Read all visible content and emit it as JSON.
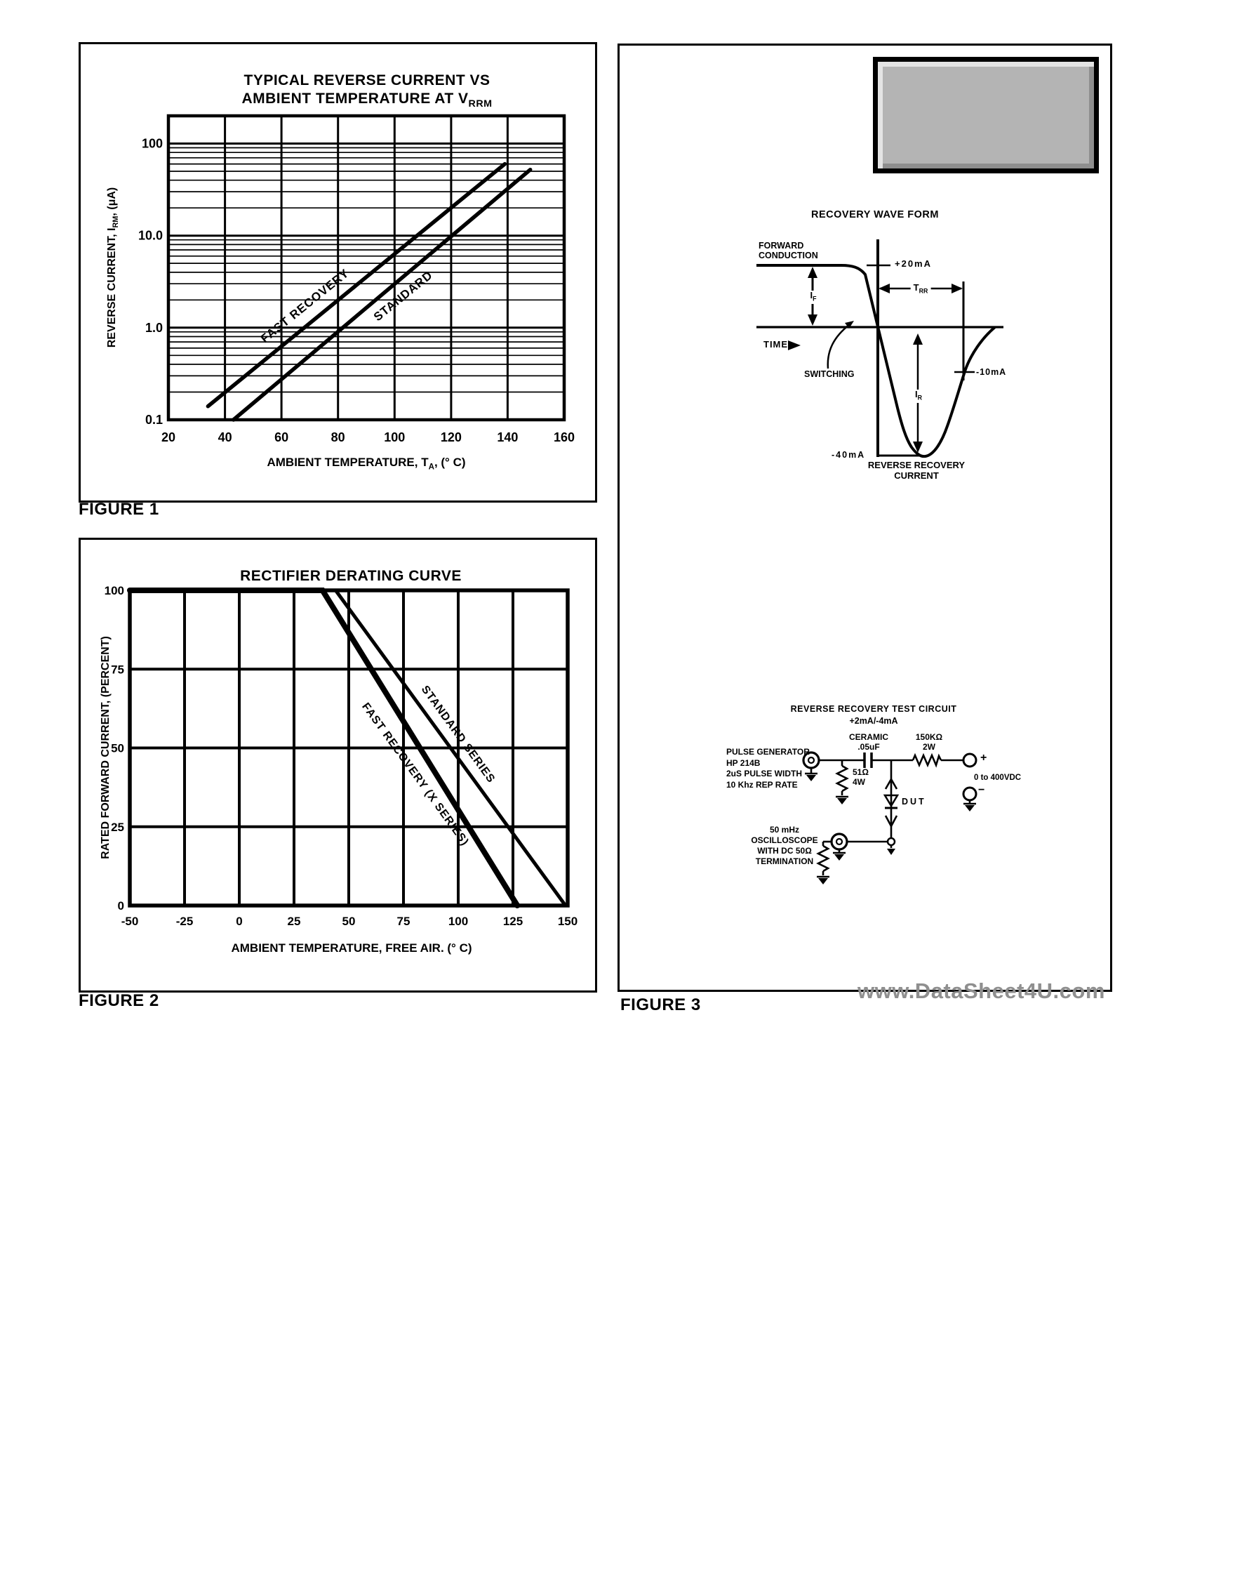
{
  "watermarks": {
    "top": "www.DataSheet4U.com",
    "bottom": "www.DataSheet4U.com"
  },
  "colors": {
    "ink": "#000000",
    "watermark_light": "#c9c9c9",
    "watermark_dark": "#8f8f8f",
    "placeholder_fill": "#b4b4b4"
  },
  "figure1": {
    "caption": "FIGURE 1",
    "title_line1": "TYPICAL REVERSE CURRENT VS",
    "title_line2_parts": [
      "AMBIENT TEMPERATURE AT V",
      [
        "RRM"
      ]
    ],
    "xlabel_parts": [
      "AMBIENT TEMPERATURE, T",
      [
        "A"
      ],
      ", (° C)"
    ],
    "ylabel_parts": [
      "REVERSE CURRENT, I",
      [
        "RM"
      ],
      ", (μA)"
    ],
    "chart_data": {
      "type": "line",
      "title": "TYPICAL REVERSE CURRENT VS AMBIENT TEMPERATURE AT VRRM",
      "xlabel": "AMBIENT TEMPERATURE, TA, (° C)",
      "ylabel": "REVERSE CURRENT, IRM, (μA)",
      "xlim": [
        20,
        160
      ],
      "ylim": [
        0.1,
        200
      ],
      "yscale": "log",
      "grid": "on",
      "x_ticks": [
        20,
        40,
        60,
        80,
        100,
        120,
        140,
        160
      ],
      "y_ticks": [
        {
          "v": 100,
          "label": "100"
        },
        {
          "v": 10,
          "label": "10.0"
        },
        {
          "v": 1,
          "label": "1.0"
        },
        {
          "v": 0.1,
          "label": "0.1"
        }
      ],
      "series": [
        {
          "name": "FAST RECOVERY",
          "width": 5.5,
          "points": [
            [
              34,
              0.14
            ],
            [
              139,
              60
            ]
          ]
        },
        {
          "name": "STANDARD",
          "width": 5.5,
          "points": [
            [
              43,
              0.1
            ],
            [
              148,
              52
            ]
          ]
        }
      ]
    }
  },
  "figure2": {
    "caption": "FIGURE 2",
    "xlabel": "AMBIENT TEMPERATURE, FREE AIR. (° C)",
    "ylabel": "RATED FORWARD CURRENT, (PERCENT)",
    "chart_data": {
      "type": "line",
      "title": "RECTIFIER DERATING CURVE",
      "xlabel": "AMBIENT TEMPERATURE, FREE AIR. (° C)",
      "ylabel": "RATED FORWARD CURRENT, (PERCENT)",
      "xlim": [
        -50,
        150
      ],
      "ylim": [
        0,
        100
      ],
      "grid": "on",
      "x_ticks": [
        -50,
        -25,
        0,
        25,
        50,
        75,
        100,
        125,
        150
      ],
      "y_ticks": [
        0,
        25,
        50,
        75,
        100
      ],
      "series": [
        {
          "name": "FAST RECOVERY (X SERIES)",
          "width": 8,
          "points": [
            [
              -50,
              100
            ],
            [
              38,
              100
            ],
            [
              127,
              0
            ]
          ]
        },
        {
          "name": "STANDARD SERIES",
          "width": 5,
          "points": [
            [
              -50,
              100
            ],
            [
              44,
              100
            ],
            [
              149,
              0
            ]
          ]
        }
      ]
    }
  },
  "figure3": {
    "caption": "FIGURE 3",
    "waveform": {
      "title": "RECOVERY WAVE FORM",
      "forward_conduction": "FORWARD\nCONDUCTION",
      "plus20": "+20mA",
      "trr_parts": [
        "T",
        [
          "RR"
        ]
      ],
      "if_parts": [
        "I",
        [
          "F"
        ]
      ],
      "time": "TIME",
      "switching": "SWITCHING",
      "minus10": "-10mA",
      "ir_parts": [
        "I",
        [
          "R"
        ]
      ],
      "minus40": "-40mA",
      "reverse_recovery": "REVERSE RECOVERY\nCURRENT"
    },
    "circuit": {
      "title": "REVERSE RECOVERY TEST CIRCUIT",
      "subtitle": "+2mA/-4mA",
      "pulse_generator": "PULSE GENERATOR\nHP 214B\n2uS PULSE WIDTH\n10 Khz REP RATE",
      "ceramic": "CERAMIC\n.05uF",
      "r150": "150KΩ\n2W",
      "r51": "51Ω\n4W",
      "dut": "DUT",
      "scope": "50 mHz\nOSCILLOSCOPE\nWITH DC 50Ω\nTERMINATION",
      "vdc": "0 to 400VDC",
      "plus": "+",
      "minus": "−"
    }
  }
}
